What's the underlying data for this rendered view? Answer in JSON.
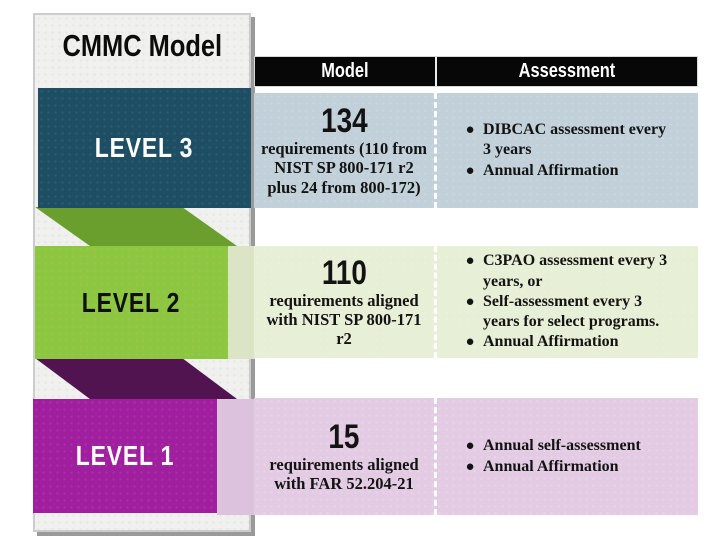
{
  "panel": {
    "title": "CMMC Model"
  },
  "table_header": {
    "model": "Model",
    "assessment": "Assessment"
  },
  "levels": [
    {
      "label": "LEVEL 3",
      "box_color": "#1d4e63",
      "row_color": "#c1d0d9",
      "model": {
        "number": "134",
        "description": "requirements (110 from NIST SP 800-171 r2 plus 24 from 800-172)"
      },
      "assessment": {
        "bullet_glyph": "●",
        "bullets": [
          "DIBCAC assessment every 3 years",
          "Annual Affirmation"
        ]
      }
    },
    {
      "label": "LEVEL 2",
      "box_color": "#8dc640",
      "row_color": "#e7efd6",
      "model": {
        "number": "110",
        "description": "requirements aligned with NIST SP 800-171 r2"
      },
      "assessment": {
        "bullet_glyph": "●",
        "bullets": [
          "C3PAO assessment every 3 years, or",
          "Self-assessment every 3 years for select programs.",
          "Annual Affirmation"
        ]
      }
    },
    {
      "label": "LEVEL 1",
      "box_color": "#a01f9f",
      "row_color": "#e4cbe4",
      "model": {
        "number": "15",
        "description": "requirements aligned with FAR 52.204-21"
      },
      "assessment": {
        "bullet_glyph": "●",
        "bullets": [
          "Annual self-assessment",
          "Annual Affirmation"
        ]
      }
    }
  ],
  "ribbon_fold_colors": {
    "green": "#6a9f2e",
    "purple": "#521450"
  }
}
